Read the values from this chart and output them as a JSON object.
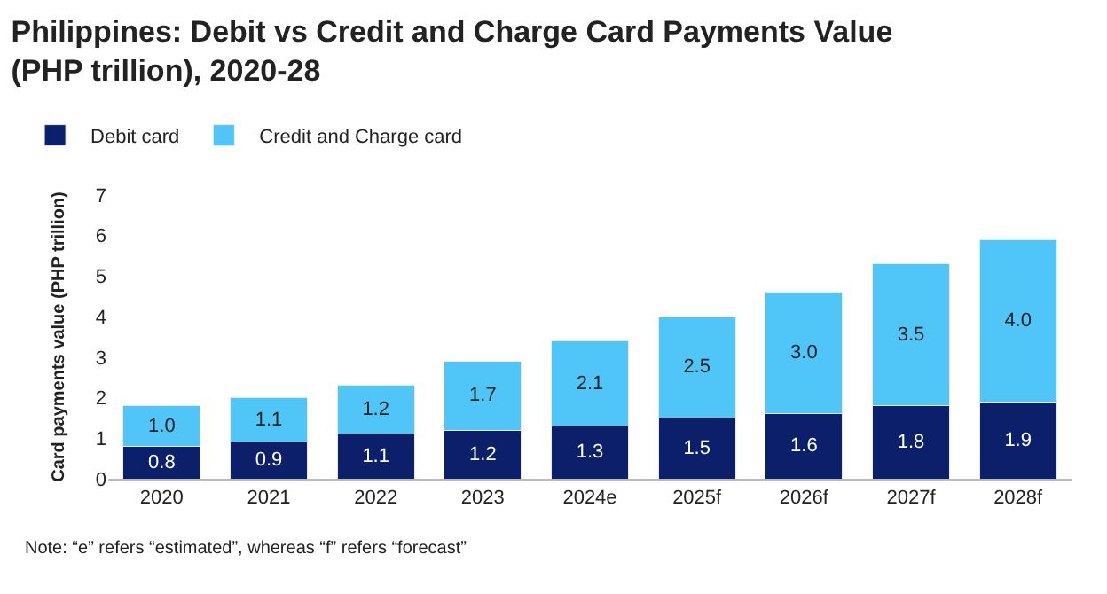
{
  "chart_data": {
    "type": "bar",
    "stacked": true,
    "title": "Philippines: Debit vs Credit and Charge Card Payments Value\n(PHP trillion), 2020-28",
    "ylabel": "Card payments value (PHP trillion)",
    "categories": [
      "2020",
      "2021",
      "2022",
      "2023",
      "2024e",
      "2025f",
      "2026f",
      "2027f",
      "2028f"
    ],
    "series": [
      {
        "name": "Debit card",
        "color": "#0c1f6b",
        "values": [
          0.8,
          0.9,
          1.1,
          1.2,
          1.3,
          1.5,
          1.6,
          1.8,
          1.9
        ],
        "value_labels": [
          "0.8",
          "0.9",
          "1.1",
          "1.2",
          "1.3",
          "1.5",
          "1.6",
          "1.8",
          "1.9"
        ]
      },
      {
        "name": "Credit and Charge card",
        "color": "#4fc6f7",
        "values": [
          1.0,
          1.1,
          1.2,
          1.7,
          2.1,
          2.5,
          3.0,
          3.5,
          4.0
        ],
        "value_labels": [
          "1.0",
          "1.1",
          "1.2",
          "1.7",
          "2.1",
          "2.5",
          "3.0",
          "3.5",
          "4.0"
        ]
      }
    ],
    "ylim": [
      0,
      7
    ],
    "yticks": [
      0,
      1,
      2,
      3,
      4,
      5,
      6,
      7
    ],
    "legend": "top left",
    "annotations": [
      "Note: “e” refers “estimated”, whereas “f” refers “forecast”"
    ]
  }
}
